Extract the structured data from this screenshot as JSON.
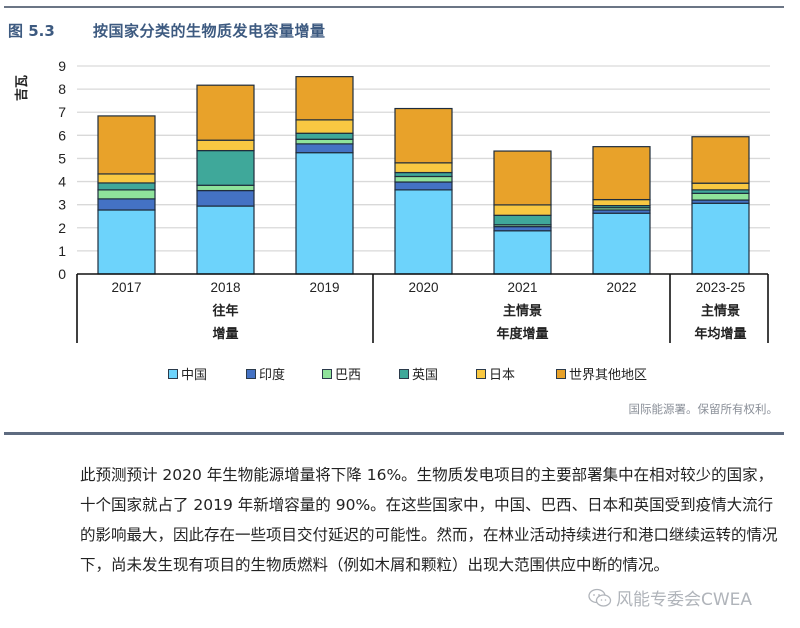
{
  "figure": {
    "number": "图 5.3",
    "title": "按国家分类的生物质发电容量增量",
    "credit": "国际能源署。保留所有权利。"
  },
  "chart_data": {
    "type": "bar",
    "stacked": true,
    "title": "按国家分类的生物质发电容量增量",
    "ylabel": "吉瓦",
    "xlabel": "",
    "ylim": [
      0,
      9
    ],
    "yticks": [
      0,
      1,
      2,
      3,
      4,
      5,
      6,
      7,
      8,
      9
    ],
    "grid": true,
    "legend_position": "bottom",
    "categories": [
      "2017",
      "2018",
      "2019",
      "2020",
      "2021",
      "2022",
      "2023-25"
    ],
    "groups": [
      {
        "label_lines": [
          "往年",
          "增量"
        ],
        "categories": [
          "2017",
          "2018",
          "2019"
        ]
      },
      {
        "label_lines": [
          "主情景",
          "年度增量"
        ],
        "categories": [
          "2020",
          "2021",
          "2022"
        ]
      },
      {
        "label_lines": [
          "主情景",
          "年均增量"
        ],
        "categories": [
          "2023-25"
        ]
      }
    ],
    "series": [
      {
        "name": "中国",
        "color": "#6dd3fb",
        "values": [
          2.77,
          2.94,
          5.25,
          3.64,
          1.87,
          2.63,
          3.06
        ]
      },
      {
        "name": "印度",
        "color": "#4472c4",
        "values": [
          0.48,
          0.67,
          0.38,
          0.34,
          0.18,
          0.14,
          0.14
        ]
      },
      {
        "name": "巴西",
        "color": "#8fe39b",
        "values": [
          0.39,
          0.23,
          0.2,
          0.24,
          0.08,
          0.1,
          0.29
        ]
      },
      {
        "name": "英国",
        "color": "#3fa89a",
        "values": [
          0.3,
          1.5,
          0.26,
          0.17,
          0.41,
          0.09,
          0.15
        ]
      },
      {
        "name": "日本",
        "color": "#f8c842",
        "values": [
          0.39,
          0.45,
          0.58,
          0.42,
          0.45,
          0.26,
          0.29
        ]
      },
      {
        "name": "世界其他地区",
        "color": "#e8a22a",
        "values": [
          2.51,
          2.38,
          1.87,
          2.35,
          2.33,
          2.29,
          2.01
        ]
      }
    ]
  },
  "body": {
    "paragraph": "此预测预计 2020 年生物能源增量将下降 16%。生物质发电项目的主要部署集中在相对较少的国家，十个国家就占了 2019 年新增容量的 90%。在这些国家中，中国、巴西、日本和英国受到疫情大流行的影响最大，因此存在一些项目交付延迟的可能性。然而，在林业活动持续进行和港口继续运转的情况下，尚未发生现有项目的生物质燃料（例如木屑和颗粒）出现大范围供应中断的情况。"
  },
  "watermark": {
    "icon": "wechat-icon",
    "text": "风能专委会CWEA"
  }
}
